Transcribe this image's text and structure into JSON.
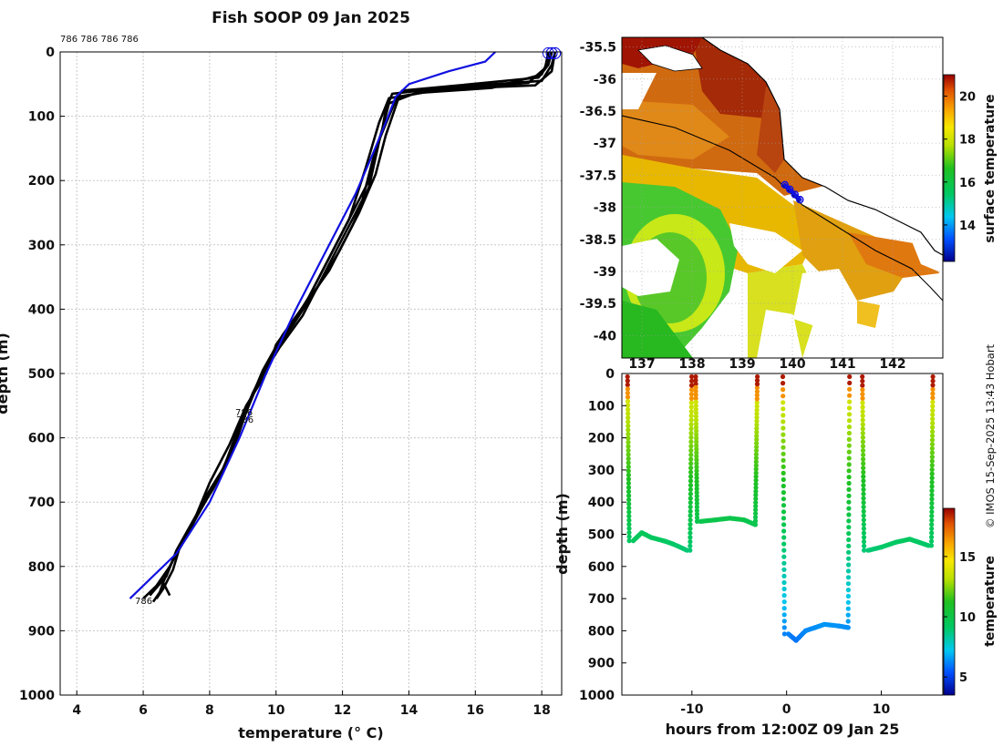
{
  "title": "Fish SOOP 09 Jan 2025",
  "credit": "© IMOS 15-Sep-2025 13:43 Hobart",
  "colors": {
    "model_line": "#1010e0",
    "profile_line": "#000000",
    "land": "#ffffff",
    "coast": "#000000"
  },
  "chart_data": [
    {
      "type": "line",
      "name": "temperature-depth profiles",
      "xlabel": "temperature (° C)",
      "ylabel": "depth (m)",
      "xlim": [
        3.5,
        18.6
      ],
      "ylim": [
        1000,
        0
      ],
      "xticks": [
        4,
        6,
        8,
        10,
        12,
        14,
        16,
        18
      ],
      "yticks": [
        0,
        100,
        200,
        300,
        400,
        500,
        600,
        700,
        800,
        900,
        1000
      ],
      "grid": true,
      "annotations": [
        "786 786 786 786",
        "786",
        "786",
        "786"
      ],
      "reference_series": {
        "name": "climatology",
        "color": "#1010e0",
        "points": [
          [
            16.6,
            0
          ],
          [
            16.3,
            15
          ],
          [
            15.2,
            30
          ],
          [
            14.0,
            50
          ],
          [
            13.6,
            70
          ],
          [
            13.3,
            110
          ],
          [
            12.9,
            160
          ],
          [
            12.4,
            220
          ],
          [
            11.6,
            300
          ],
          [
            10.6,
            400
          ],
          [
            9.7,
            500
          ],
          [
            8.9,
            600
          ],
          [
            8.0,
            700
          ],
          [
            7.0,
            780
          ],
          [
            6.2,
            820
          ],
          [
            5.6,
            850
          ]
        ]
      },
      "series": [
        {
          "name": "profile 1",
          "points": [
            [
              18.3,
              0
            ],
            [
              18.2,
              20
            ],
            [
              17.9,
              40
            ],
            [
              15.5,
              52
            ],
            [
              13.8,
              60
            ],
            [
              13.6,
              75
            ],
            [
              13.4,
              100
            ],
            [
              13.0,
              150
            ],
            [
              12.8,
              200
            ],
            [
              12.3,
              250
            ],
            [
              11.8,
              300
            ],
            [
              11.0,
              380
            ],
            [
              10.4,
              430
            ],
            [
              9.8,
              480
            ],
            [
              9.3,
              530
            ],
            [
              8.9,
              580
            ],
            [
              8.4,
              650
            ],
            [
              7.8,
              700
            ],
            [
              7.2,
              760
            ],
            [
              6.8,
              800
            ],
            [
              6.4,
              830
            ],
            [
              6.0,
              850
            ]
          ]
        },
        {
          "name": "profile 2",
          "points": [
            [
              18.4,
              0
            ],
            [
              18.3,
              20
            ],
            [
              18.0,
              45
            ],
            [
              15.2,
              55
            ],
            [
              13.5,
              65
            ],
            [
              13.3,
              90
            ],
            [
              13.2,
              120
            ],
            [
              12.9,
              170
            ],
            [
              12.6,
              230
            ],
            [
              12.0,
              290
            ],
            [
              11.3,
              360
            ],
            [
              10.8,
              410
            ],
            [
              10.1,
              460
            ],
            [
              9.5,
              510
            ],
            [
              9.1,
              560
            ],
            [
              8.7,
              620
            ],
            [
              8.1,
              680
            ],
            [
              7.5,
              730
            ],
            [
              7.0,
              780
            ],
            [
              6.7,
              810
            ],
            [
              6.5,
              840
            ],
            [
              6.3,
              855
            ]
          ]
        },
        {
          "name": "profile 3",
          "points": [
            [
              18.2,
              0
            ],
            [
              18.1,
              25
            ],
            [
              17.6,
              48
            ],
            [
              14.8,
              60
            ],
            [
              13.4,
              72
            ],
            [
              13.1,
              110
            ],
            [
              12.7,
              180
            ],
            [
              12.2,
              260
            ],
            [
              11.5,
              330
            ],
            [
              10.9,
              390
            ],
            [
              10.2,
              440
            ],
            [
              9.6,
              495
            ],
            [
              9.2,
              545
            ],
            [
              8.8,
              600
            ],
            [
              8.3,
              660
            ],
            [
              7.7,
              715
            ],
            [
              7.1,
              770
            ],
            [
              6.9,
              805
            ],
            [
              6.6,
              835
            ],
            [
              6.4,
              850
            ]
          ]
        },
        {
          "name": "profile 4",
          "points": [
            [
              18.4,
              0
            ],
            [
              18.3,
              30
            ],
            [
              17.8,
              52
            ],
            [
              15.0,
              58
            ],
            [
              13.7,
              70
            ],
            [
              13.3,
              130
            ],
            [
              13.0,
              190
            ],
            [
              12.5,
              250
            ],
            [
              11.9,
              310
            ],
            [
              11.2,
              370
            ],
            [
              10.5,
              425
            ],
            [
              9.9,
              470
            ],
            [
              9.4,
              520
            ],
            [
              9.0,
              570
            ],
            [
              8.5,
              640
            ],
            [
              7.9,
              690
            ],
            [
              7.4,
              745
            ],
            [
              6.9,
              790
            ],
            [
              6.6,
              825
            ],
            [
              6.8,
              845
            ]
          ]
        },
        {
          "name": "profile 5",
          "points": [
            [
              18.3,
              0
            ],
            [
              18.0,
              35
            ],
            [
              16.5,
              56
            ],
            [
              14.2,
              64
            ],
            [
              13.4,
              80
            ],
            [
              13.1,
              140
            ],
            [
              12.8,
              210
            ],
            [
              12.3,
              270
            ],
            [
              11.6,
              340
            ],
            [
              10.7,
              405
            ],
            [
              10.0,
              455
            ],
            [
              9.7,
              500
            ],
            [
              9.1,
              550
            ],
            [
              8.6,
              610
            ],
            [
              8.0,
              670
            ],
            [
              7.6,
              720
            ],
            [
              7.0,
              775
            ],
            [
              6.7,
              815
            ],
            [
              6.2,
              845
            ]
          ]
        }
      ]
    },
    {
      "type": "heatmap",
      "name": "surface temperature map",
      "xlim": [
        136.6,
        143.0
      ],
      "ylim": [
        -40.35,
        -35.35
      ],
      "xticks": [
        "137",
        "138",
        "139",
        "140",
        "141",
        "142"
      ],
      "yticks": [
        "-35.5",
        "-36",
        "-36.5",
        "-37",
        "-37.5",
        "-38",
        "-38.5",
        "-39",
        "-39.5",
        "-40"
      ],
      "colorbar_label": "surface temperature",
      "colorbar_ticks": [
        "14",
        "16",
        "18",
        "20"
      ],
      "colorbar_range": [
        12.3,
        21.0
      ],
      "track_label": "ship track",
      "track": [
        [
          139.85,
          -37.65
        ],
        [
          139.95,
          -37.72
        ],
        [
          140.05,
          -37.8
        ],
        [
          140.15,
          -37.88
        ]
      ]
    },
    {
      "type": "scatter",
      "name": "depth-time section",
      "xlabel": "hours from 12:00Z 09 Jan 25",
      "ylabel": "depth (m)",
      "xlim": [
        -17.4,
        16.5
      ],
      "ylim": [
        1000,
        0
      ],
      "xticks": [
        "-10",
        "0",
        "10"
      ],
      "yticks": [
        "0",
        "100",
        "200",
        "300",
        "400",
        "500",
        "600",
        "700",
        "800",
        "900",
        "1000"
      ],
      "colorbar_label": "temperature",
      "colorbar_ticks": [
        "5",
        "10",
        "15"
      ],
      "colorbar_range": [
        3.5,
        19.0
      ],
      "segments": [
        {
          "descent": [
            -16.8,
            -16.2
          ],
          "floor": [
            [
              -16.2,
              520
            ],
            [
              -15.3,
              495
            ],
            [
              -14.3,
              510
            ],
            [
              -13.0,
              520
            ],
            [
              -12.0,
              530
            ],
            [
              -10.5,
              550
            ]
          ],
          "ascent": [
            -10.2,
            -9.6
          ]
        },
        {
          "descent": [
            -9.6,
            -9.1
          ],
          "floor": [
            [
              -9.1,
              460
            ],
            [
              -7.5,
              455
            ],
            [
              -6.0,
              450
            ],
            [
              -4.5,
              455
            ],
            [
              -3.3,
              470
            ]
          ],
          "ascent": [
            -3.3,
            -2.6
          ]
        },
        {
          "descent": [
            -0.4,
            0.2
          ],
          "floor": [
            [
              0.2,
              810
            ],
            [
              1.0,
              830
            ],
            [
              2.0,
              800
            ],
            [
              3.0,
              790
            ],
            [
              4.0,
              780
            ],
            [
              5.5,
              785
            ],
            [
              6.5,
              790
            ]
          ],
          "ascent": [
            6.5,
            7.0
          ]
        },
        {
          "descent": [
            8.0,
            8.6
          ],
          "floor": [
            [
              8.6,
              550
            ],
            [
              10.0,
              540
            ],
            [
              11.5,
              525
            ],
            [
              13.0,
              515
            ],
            [
              14.0,
              525
            ],
            [
              15.0,
              535
            ]
          ],
          "ascent": [
            15.3,
            15.8
          ]
        }
      ]
    }
  ]
}
